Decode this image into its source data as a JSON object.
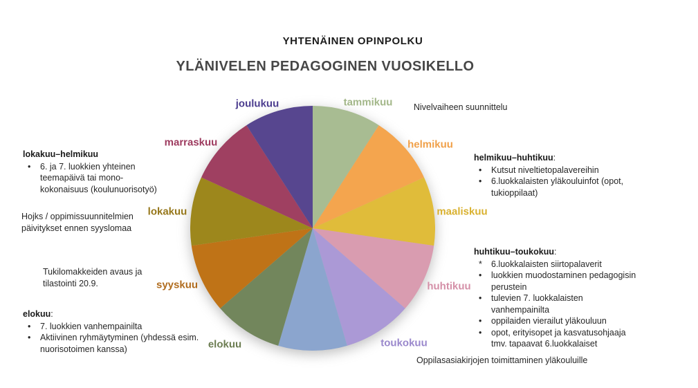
{
  "titles": {
    "top": "YHTENÄINEN OPINPOLKU",
    "main": "YLÄNIVELEN PEDAGOGINEN VUOSIKELLO"
  },
  "chart_data": {
    "type": "pie",
    "title": "YLÄNIVELEN PEDAGOGINEN VUOSIKELLO",
    "subtitle": "YHTENÄINEN OPINPOLKU",
    "direction": "clockwise",
    "start_angle_deg": 0,
    "legend_position": "around-pie",
    "slices": [
      {
        "label": "tammikuu",
        "value": 1,
        "color": "#a8bc92",
        "label_color": "#a3b789"
      },
      {
        "label": "helmikuu",
        "value": 1,
        "color": "#f4a54e",
        "label_color": "#f0a049"
      },
      {
        "label": "maaliskuu",
        "value": 1,
        "color": "#e0bc3a",
        "label_color": "#d9b12f"
      },
      {
        "label": "huhtikuu",
        "value": 1,
        "color": "#d99cb0",
        "label_color": "#d48fa7"
      },
      {
        "label": "toukokuu",
        "value": 1,
        "color": "#ab99d6",
        "label_color": "#9a88cc"
      },
      {
        "label": "",
        "value": 1,
        "color": "#8ba5ce",
        "label_color": ""
      },
      {
        "label": "elokuu",
        "value": 1,
        "color": "#72865c",
        "label_color": "#6c7d52"
      },
      {
        "label": "syyskuu",
        "value": 1,
        "color": "#bf7317",
        "label_color": "#b06c1e"
      },
      {
        "label": "lokakuu",
        "value": 1,
        "color": "#9d871c",
        "label_color": "#96771b"
      },
      {
        "label": "marraskuu",
        "value": 1,
        "color": "#9f4061",
        "label_color": "#9d3a5e"
      },
      {
        "label": "joulukuu",
        "value": 1,
        "color": "#57468f",
        "label_color": "#4c3d8f"
      }
    ]
  },
  "annotations": {
    "left": [
      {
        "heading": "lokakuu–helmikuu",
        "suffix": "",
        "bullets": [
          "6. ja 7. luokkien yhteinen\nteemapäivä tai mono-\nkokonaisuus (koulunuorisotyö)"
        ]
      },
      {
        "text": "Hojks / oppimissuunnitelmien\npäivitykset ennen syyslomaa"
      },
      {
        "text": "Tukilomakkeiden avaus ja\ntilastointi 20.9."
      },
      {
        "heading": "elokuu",
        "suffix": ":",
        "bullets": [
          "7. luokkien vanhempainilta",
          "Aktiivinen ryhmäytyminen (yhdessä esim.\nnuorisotoimen kanssa)"
        ]
      }
    ],
    "right": [
      {
        "text": "Nivelvaiheen suunnittelu"
      },
      {
        "heading": "helmikuu–huhtikuu",
        "suffix": ":",
        "bullets": [
          "Kutsut niveltietopalavereihin",
          "6.luokkalaisten yläkouluinfot (opot,\ntukioppilaat)"
        ]
      },
      {
        "heading": "huhtikuu–toukokuu",
        "suffix": ":",
        "bullet_glyphs": [
          "*"
        ],
        "bullets": [
          "6.luokkalaisten siirtopalaverit",
          "luokkien muodostaminen pedagogisin\nperustein",
          "tulevien 7. luokkalaisten\nvanhempainilta",
          "oppilaiden vierailut yläkouluun",
          "opot, erityisopet ja kasvatusohjaaja\ntmv. tapaavat 6.luokkalaiset"
        ]
      },
      {
        "text": "Oppilasasiakirjojen toimittaminen yläkouluille"
      }
    ]
  }
}
